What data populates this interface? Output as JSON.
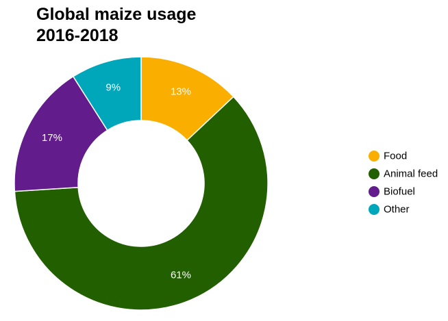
{
  "title_line1": "Global maize usage",
  "title_line2": "2016-2018",
  "chart_data": {
    "type": "pie",
    "variant": "donut",
    "title": "Global maize usage 2016-2018",
    "categories": [
      "Food",
      "Animal feed",
      "Biofuel",
      "Other"
    ],
    "values": [
      13,
      61,
      17,
      9
    ],
    "labels": [
      "13%",
      "61%",
      "17%",
      "9%"
    ],
    "unit": "%",
    "colors": [
      "#F9AE00",
      "#215F00",
      "#621C8C",
      "#00A6BA"
    ],
    "legend_position": "right",
    "start_angle": "top, clockwise"
  }
}
